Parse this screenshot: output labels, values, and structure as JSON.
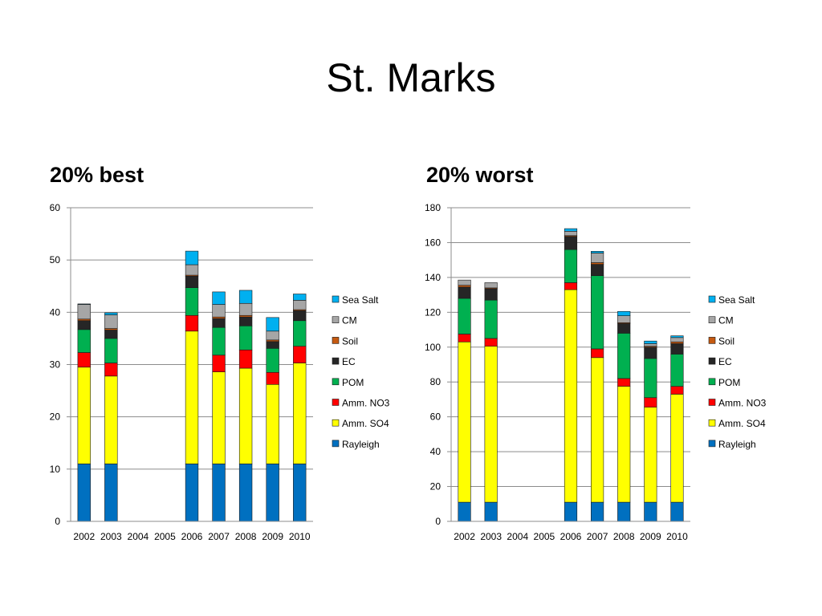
{
  "slide": {
    "title": "St. Marks"
  },
  "charts": [
    {
      "heading": "20% best"
    },
    {
      "heading": "20% worst"
    }
  ],
  "chart_data": [
    {
      "type": "bar",
      "stacked": true,
      "title": "20% best",
      "categories": [
        "2002",
        "2003",
        "2004",
        "2005",
        "2006",
        "2007",
        "2008",
        "2009",
        "2010"
      ],
      "ylim": [
        0,
        60
      ],
      "yticks": [
        0,
        10,
        20,
        30,
        40,
        50,
        60
      ],
      "grid": true,
      "legend_position": "right",
      "series": [
        {
          "name": "Rayleigh",
          "color": "#0070C0",
          "values": [
            11,
            11,
            null,
            null,
            11,
            11,
            11,
            11,
            11
          ]
        },
        {
          "name": "Amm. SO4",
          "color": "#FFFF00",
          "values": [
            18.5,
            16.8,
            null,
            null,
            25.4,
            17.6,
            18.3,
            15.2,
            19.3
          ]
        },
        {
          "name": "Amm. NO3",
          "color": "#FF0000",
          "values": [
            2.8,
            2.5,
            null,
            null,
            3.0,
            3.2,
            3.5,
            2.3,
            3.2
          ]
        },
        {
          "name": "POM",
          "color": "#00B050",
          "values": [
            4.4,
            4.7,
            null,
            null,
            5.3,
            5.3,
            4.6,
            4.6,
            4.9
          ]
        },
        {
          "name": "EC",
          "color": "#262626",
          "values": [
            1.7,
            1.6,
            null,
            null,
            2.2,
            1.7,
            1.7,
            1.3,
            1.9
          ]
        },
        {
          "name": "Soil",
          "color": "#C55A11",
          "values": [
            0.3,
            0.3,
            null,
            null,
            0.2,
            0.3,
            0.3,
            0.3,
            0.2
          ]
        },
        {
          "name": "CM",
          "color": "#A6A6A6",
          "values": [
            2.8,
            2.6,
            null,
            null,
            2.0,
            2.4,
            2.3,
            1.7,
            1.8
          ]
        },
        {
          "name": "Sea Salt",
          "color": "#00B0F0",
          "values": [
            0.1,
            0.4,
            null,
            null,
            2.6,
            2.4,
            2.5,
            2.6,
            1.2
          ]
        }
      ]
    },
    {
      "type": "bar",
      "stacked": true,
      "title": "20% worst",
      "categories": [
        "2002",
        "2003",
        "2004",
        "2005",
        "2006",
        "2007",
        "2008",
        "2009",
        "2010"
      ],
      "ylim": [
        0,
        180
      ],
      "yticks": [
        0,
        20,
        40,
        60,
        80,
        100,
        120,
        140,
        160,
        180
      ],
      "grid": true,
      "legend_position": "right",
      "series": [
        {
          "name": "Rayleigh",
          "color": "#0070C0",
          "values": [
            11,
            11,
            null,
            null,
            11,
            11,
            11,
            11,
            11
          ]
        },
        {
          "name": "Amm. SO4",
          "color": "#FFFF00",
          "values": [
            92,
            89.5,
            null,
            null,
            122,
            83,
            66.5,
            54.5,
            62
          ]
        },
        {
          "name": "Amm. NO3",
          "color": "#FF0000",
          "values": [
            4.5,
            4.5,
            null,
            null,
            4,
            5,
            4.5,
            5.5,
            4.5
          ]
        },
        {
          "name": "POM",
          "color": "#00B050",
          "values": [
            20.5,
            22,
            null,
            null,
            19,
            42,
            26,
            22.5,
            18.5
          ]
        },
        {
          "name": "EC",
          "color": "#262626",
          "values": [
            6.5,
            6.5,
            null,
            null,
            7.5,
            6.5,
            5.5,
            6.5,
            6
          ]
        },
        {
          "name": "Soil",
          "color": "#C55A11",
          "values": [
            1,
            0.5,
            null,
            null,
            0.5,
            1,
            0.5,
            0.5,
            1
          ]
        },
        {
          "name": "CM",
          "color": "#A6A6A6",
          "values": [
            3,
            3,
            null,
            null,
            2.5,
            5.5,
            4,
            1.5,
            2.5
          ]
        },
        {
          "name": "Sea Salt",
          "color": "#00B0F0",
          "values": [
            0,
            0,
            null,
            null,
            1.5,
            1,
            2.5,
            1.5,
            1
          ]
        }
      ]
    }
  ]
}
